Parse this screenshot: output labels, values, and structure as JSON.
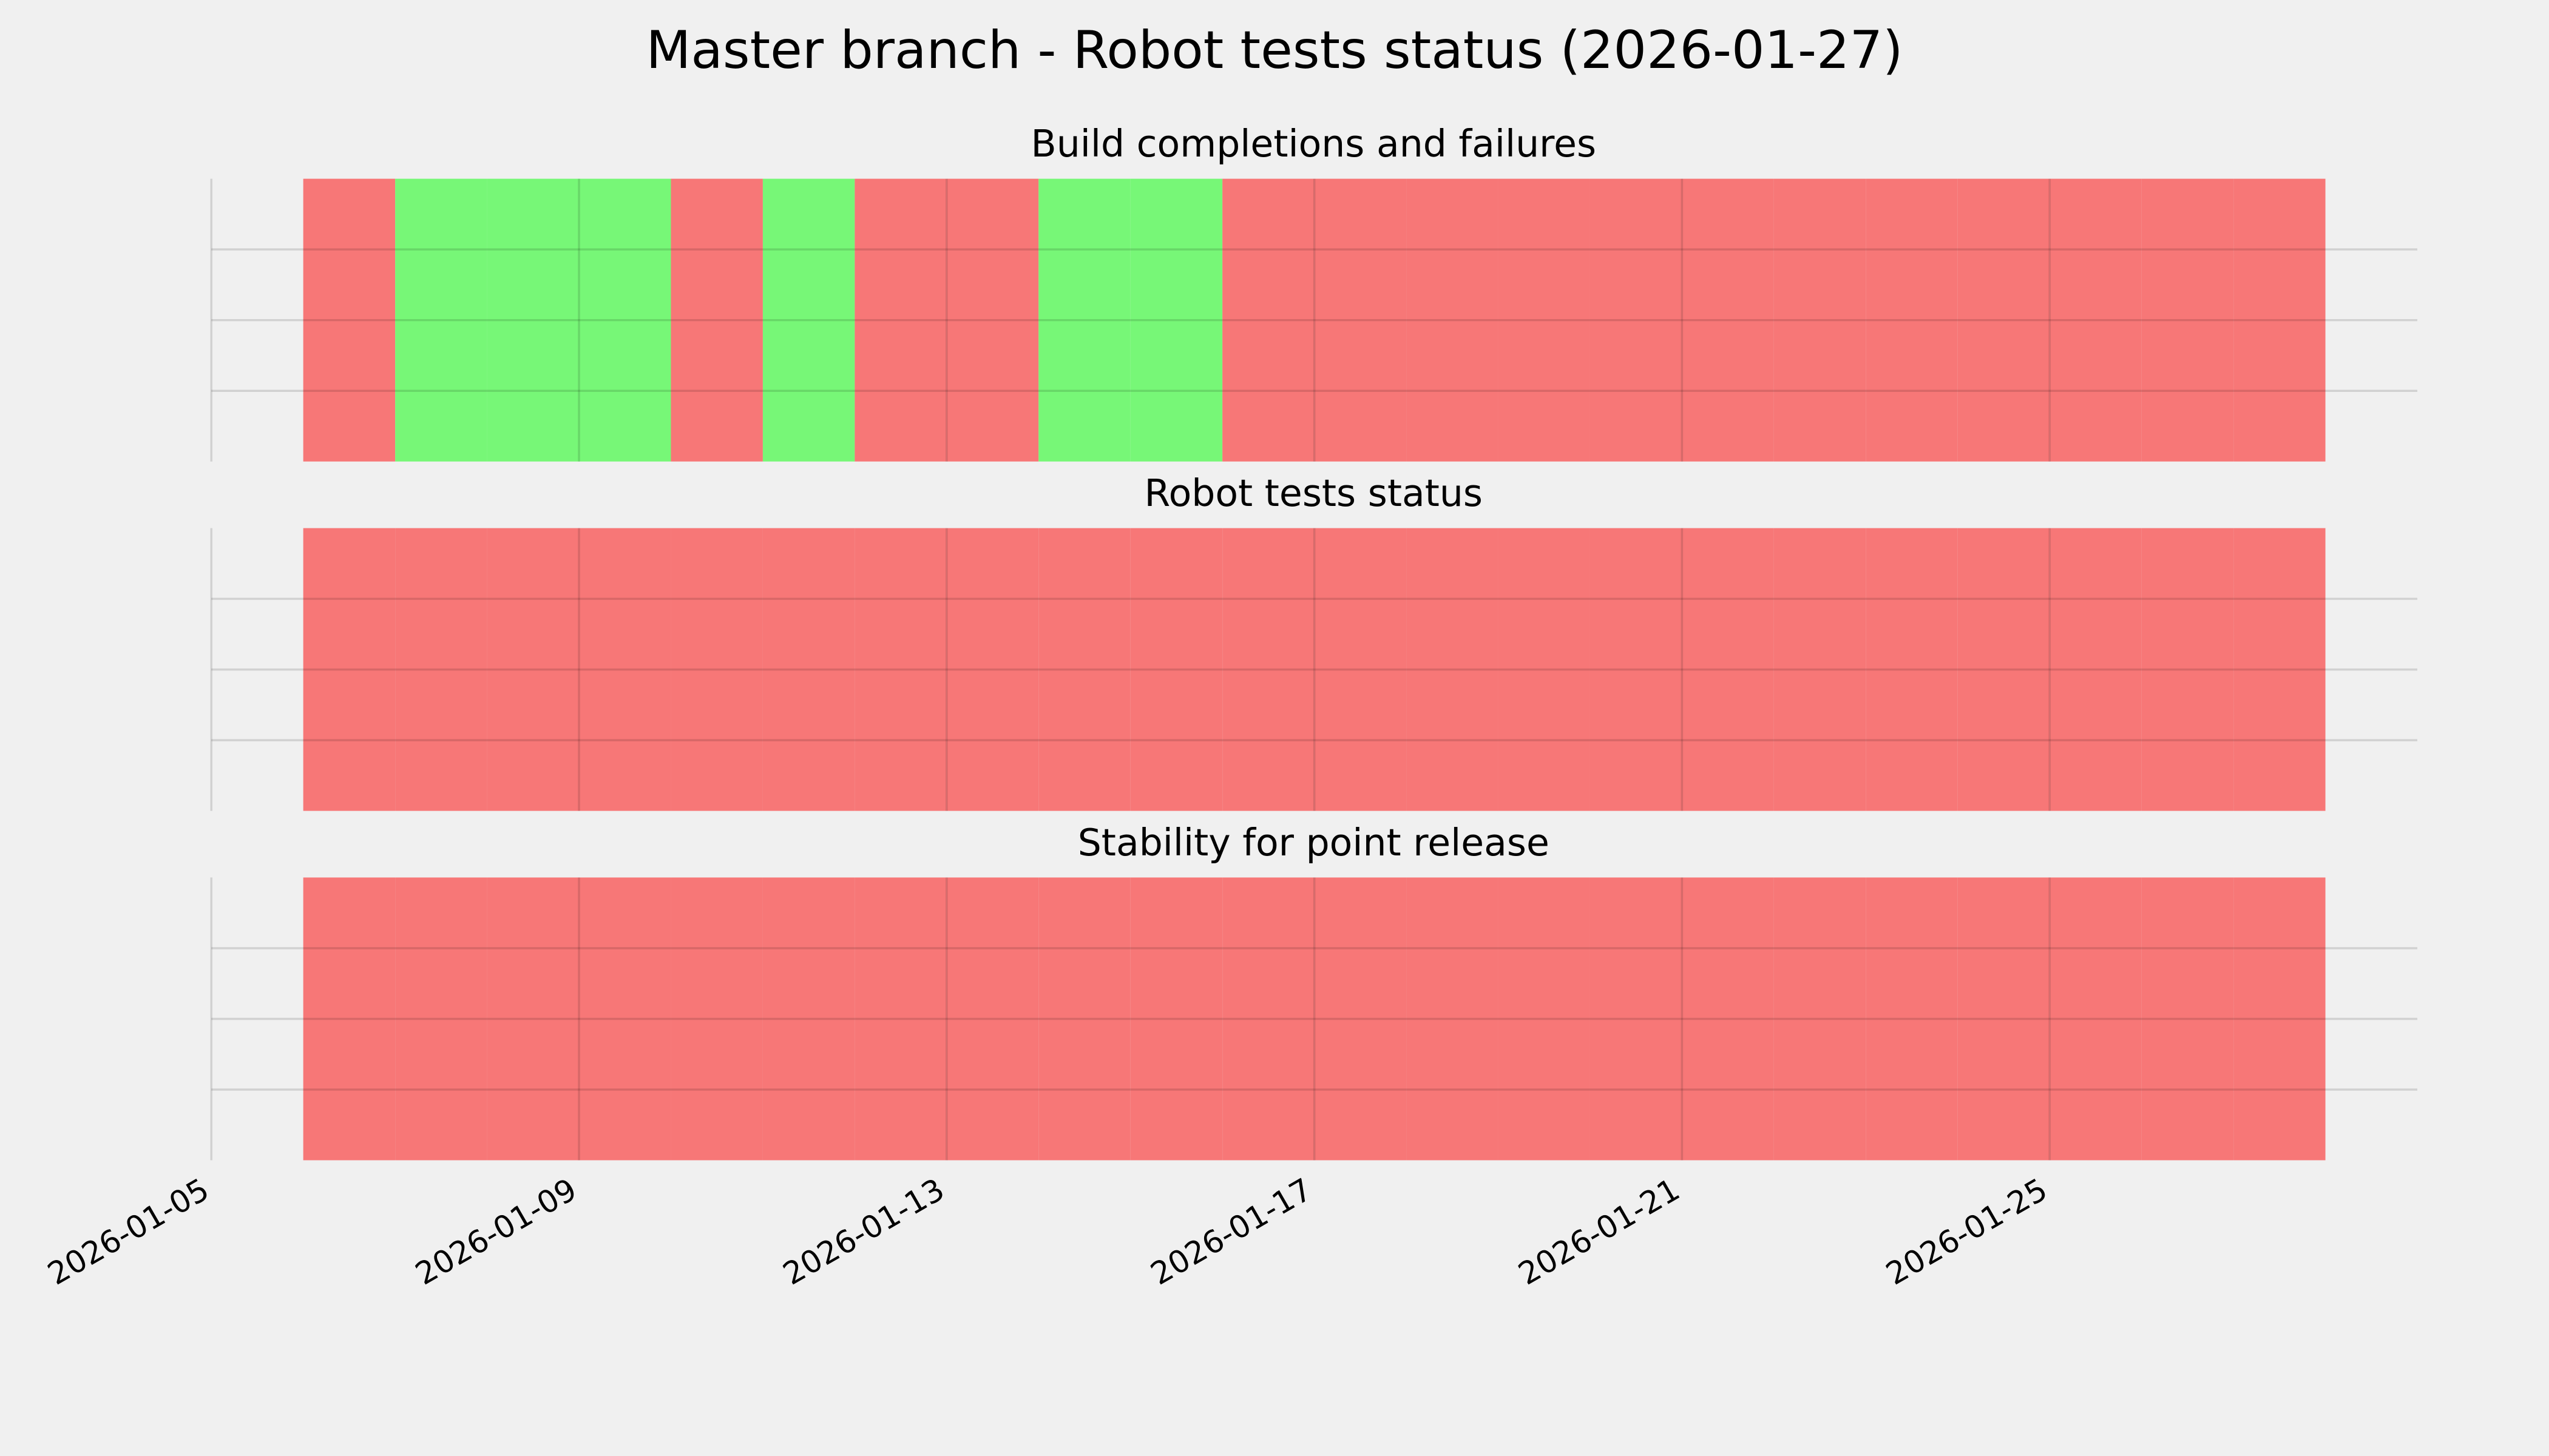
{
  "title": "Master branch - Robot tests status (2026-01-27)",
  "chart_data": [
    {
      "type": "status-timeline",
      "title": "Build completions and failures",
      "x": [
        "2026-01-06",
        "2026-01-07",
        "2026-01-08",
        "2026-01-09",
        "2026-01-10",
        "2026-01-11",
        "2026-01-12",
        "2026-01-13",
        "2026-01-14",
        "2026-01-15",
        "2026-01-16",
        "2026-01-17",
        "2026-01-18",
        "2026-01-19",
        "2026-01-20",
        "2026-01-21",
        "2026-01-22",
        "2026-01-23",
        "2026-01-24",
        "2026-01-25",
        "2026-01-26",
        "2026-01-27"
      ],
      "values": [
        0,
        1,
        1,
        1,
        0,
        1,
        0,
        0,
        1,
        1,
        0,
        0,
        0,
        0,
        0,
        0,
        0,
        0,
        0,
        0,
        0,
        0
      ],
      "status_colors": [
        "#f77777",
        "#77f777"
      ],
      "xlim": [
        "2026-01-05",
        "2026-01-29"
      ],
      "xticks": [
        "2026-01-05",
        "2026-01-09",
        "2026-01-13",
        "2026-01-17",
        "2026-01-21",
        "2026-01-25"
      ],
      "ylim": [
        0,
        1
      ],
      "yticks": [
        0.25,
        0.5,
        0.75
      ],
      "grid": true
    },
    {
      "type": "status-timeline",
      "title": "Robot tests status",
      "x": [
        "2026-01-06",
        "2026-01-07",
        "2026-01-08",
        "2026-01-09",
        "2026-01-10",
        "2026-01-11",
        "2026-01-12",
        "2026-01-13",
        "2026-01-14",
        "2026-01-15",
        "2026-01-16",
        "2026-01-17",
        "2026-01-18",
        "2026-01-19",
        "2026-01-20",
        "2026-01-21",
        "2026-01-22",
        "2026-01-23",
        "2026-01-24",
        "2026-01-25",
        "2026-01-26",
        "2026-01-27"
      ],
      "values": [
        0,
        0,
        0,
        0,
        0,
        0,
        0,
        0,
        0,
        0,
        0,
        0,
        0,
        0,
        0,
        0,
        0,
        0,
        0,
        0,
        0,
        0
      ],
      "status_colors": [
        "#f77777",
        "#77f777"
      ],
      "xlim": [
        "2026-01-05",
        "2026-01-29"
      ],
      "xticks": [
        "2026-01-05",
        "2026-01-09",
        "2026-01-13",
        "2026-01-17",
        "2026-01-21",
        "2026-01-25"
      ],
      "ylim": [
        0,
        1
      ],
      "yticks": [
        0.25,
        0.5,
        0.75
      ],
      "grid": true
    },
    {
      "type": "status-timeline",
      "title": "Stability for point release",
      "x": [
        "2026-01-06",
        "2026-01-07",
        "2026-01-08",
        "2026-01-09",
        "2026-01-10",
        "2026-01-11",
        "2026-01-12",
        "2026-01-13",
        "2026-01-14",
        "2026-01-15",
        "2026-01-16",
        "2026-01-17",
        "2026-01-18",
        "2026-01-19",
        "2026-01-20",
        "2026-01-21",
        "2026-01-22",
        "2026-01-23",
        "2026-01-24",
        "2026-01-25",
        "2026-01-26",
        "2026-01-27"
      ],
      "values": [
        0,
        0,
        0,
        0,
        0,
        0,
        0,
        0,
        0,
        0,
        0,
        0,
        0,
        0,
        0,
        0,
        0,
        0,
        0,
        0,
        0,
        0
      ],
      "status_colors": [
        "#f77777",
        "#77f777"
      ],
      "xlim": [
        "2026-01-05",
        "2026-01-29"
      ],
      "xticks": [
        "2026-01-05",
        "2026-01-09",
        "2026-01-13",
        "2026-01-17",
        "2026-01-21",
        "2026-01-25"
      ],
      "ylim": [
        0,
        1
      ],
      "yticks": [
        0.25,
        0.5,
        0.75
      ],
      "grid": true,
      "show_xtick_labels": true
    }
  ]
}
